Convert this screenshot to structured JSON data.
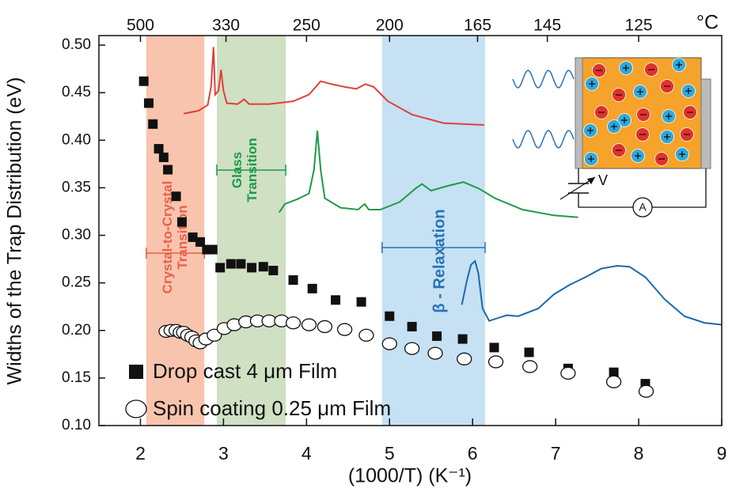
{
  "chart_data": {
    "type": "scatter",
    "xlabel": "(1000/T) (K⁻¹)",
    "ylabel": "Widths of the Trap Distribution (eV)",
    "xlim": [
      1.5,
      9
    ],
    "ylim": [
      0.1,
      0.51
    ],
    "xticks": [
      2,
      3,
      4,
      5,
      6,
      7,
      8,
      9
    ],
    "yticks": [
      {
        "value": 0.1,
        "label": "0.10"
      },
      0.15,
      {
        "value": 0.2,
        "label": "0.20"
      },
      0.25,
      {
        "value": 0.3,
        "label": "0.30"
      },
      0.35,
      {
        "value": 0.4,
        "label": "0.40"
      },
      0.45,
      {
        "value": 0.5,
        "label": "0.50"
      }
    ],
    "x2ticks": [
      {
        "value": 2.0,
        "label": "500"
      },
      {
        "value": 3.03,
        "label": "330"
      },
      {
        "value": 4.0,
        "label": "250"
      },
      {
        "value": 5.0,
        "label": "200"
      },
      {
        "value": 6.06,
        "label": "165"
      },
      {
        "value": 6.9,
        "label": "145"
      },
      {
        "value": 8.0,
        "label": "125"
      }
    ],
    "x2unit": "°C",
    "bands": [
      {
        "range": [
          2.07,
          2.77
        ],
        "color": "#f9c4ae",
        "line_color": "#e8604c",
        "lines": [
          "Crystal-to-Crystal",
          "Transition"
        ]
      },
      {
        "range": [
          2.92,
          3.75
        ],
        "color": "#cfe0c3",
        "line_color": "#1a9a4a",
        "lines": [
          "Glass",
          "Transition"
        ]
      },
      {
        "range": [
          4.91,
          6.15
        ],
        "color": "#c5e1f3",
        "line_color": "#2a72b5",
        "lines": [
          "β - Relaxation"
        ]
      }
    ],
    "series": [
      {
        "name": "Drop cast 4 μm Film",
        "marker": "square",
        "color": "#111111",
        "x": [
          2.04,
          2.1,
          2.15,
          2.22,
          2.28,
          2.33,
          2.43,
          2.5,
          2.63,
          2.72,
          2.8,
          2.87,
          2.96,
          3.09,
          3.21,
          3.34,
          3.48,
          3.6,
          3.84,
          4.07,
          4.35,
          4.66,
          5.0,
          5.27,
          5.57,
          5.88,
          6.26,
          6.68,
          7.15,
          7.7,
          8.08
        ],
        "values": [
          0.462,
          0.439,
          0.417,
          0.391,
          0.382,
          0.369,
          0.341,
          0.314,
          0.298,
          0.293,
          0.285,
          0.285,
          0.266,
          0.27,
          0.27,
          0.266,
          0.267,
          0.263,
          0.253,
          0.244,
          0.232,
          0.23,
          0.215,
          0.204,
          0.194,
          0.191,
          0.182,
          0.177,
          0.16,
          0.156,
          0.144
        ]
      },
      {
        "name": "Spin coating 0.25 μm  Film",
        "marker": "circle",
        "color": "#111111",
        "x": [
          2.31,
          2.37,
          2.43,
          2.48,
          2.52,
          2.57,
          2.62,
          2.67,
          2.72,
          2.79,
          2.89,
          3.01,
          3.13,
          3.27,
          3.41,
          3.55,
          3.7,
          3.84,
          4.03,
          4.22,
          4.46,
          4.72,
          5.0,
          5.27,
          5.55,
          5.9,
          6.28,
          6.69,
          7.15,
          7.7,
          8.09
        ],
        "values": [
          0.199,
          0.2,
          0.2,
          0.198,
          0.198,
          0.195,
          0.193,
          0.189,
          0.187,
          0.191,
          0.195,
          0.202,
          0.206,
          0.209,
          0.21,
          0.21,
          0.21,
          0.208,
          0.206,
          0.204,
          0.201,
          0.195,
          0.186,
          0.181,
          0.176,
          0.17,
          0.167,
          0.162,
          0.155,
          0.146,
          0.136
        ]
      },
      {
        "marker": "line",
        "color": "#e0403a",
        "x": [
          2.52,
          2.7,
          2.81,
          2.85,
          2.88,
          2.9,
          2.94,
          2.97,
          3.0,
          3.04,
          3.17,
          3.25,
          3.31,
          3.55,
          3.84,
          4.03,
          4.17,
          4.3,
          4.46,
          4.6,
          4.71,
          4.81,
          4.98,
          5.27,
          5.65,
          6.14
        ],
        "values": [
          0.428,
          0.431,
          0.437,
          0.456,
          0.498,
          0.448,
          0.452,
          0.474,
          0.452,
          0.439,
          0.438,
          0.443,
          0.438,
          0.438,
          0.441,
          0.448,
          0.462,
          0.459,
          0.456,
          0.454,
          0.459,
          0.456,
          0.441,
          0.427,
          0.418,
          0.416
        ]
      },
      {
        "marker": "line",
        "color": "#1f9a48",
        "x": [
          3.67,
          3.74,
          3.89,
          4.03,
          4.09,
          4.13,
          4.17,
          4.22,
          4.41,
          4.62,
          4.7,
          4.75,
          4.89,
          5.12,
          5.31,
          5.39,
          5.5,
          5.7,
          5.89,
          6.08,
          6.27,
          6.6,
          6.98,
          7.27
        ],
        "values": [
          0.324,
          0.333,
          0.338,
          0.344,
          0.369,
          0.41,
          0.369,
          0.339,
          0.329,
          0.327,
          0.333,
          0.327,
          0.327,
          0.335,
          0.349,
          0.354,
          0.347,
          0.352,
          0.356,
          0.349,
          0.339,
          0.327,
          0.321,
          0.319
        ]
      },
      {
        "marker": "line",
        "color": "#1f68ad",
        "x": [
          5.87,
          5.93,
          5.98,
          6.03,
          6.07,
          6.12,
          6.2,
          6.41,
          6.55,
          6.79,
          6.98,
          7.17,
          7.36,
          7.55,
          7.74,
          7.89,
          8.08,
          8.31,
          8.55,
          8.79,
          9.0
        ],
        "values": [
          0.227,
          0.252,
          0.269,
          0.273,
          0.26,
          0.223,
          0.21,
          0.216,
          0.215,
          0.223,
          0.238,
          0.248,
          0.256,
          0.265,
          0.268,
          0.267,
          0.256,
          0.233,
          0.215,
          0.208,
          0.206
        ]
      }
    ],
    "inset": {
      "voltage_label": "V",
      "ammeter_label": "A"
    }
  }
}
